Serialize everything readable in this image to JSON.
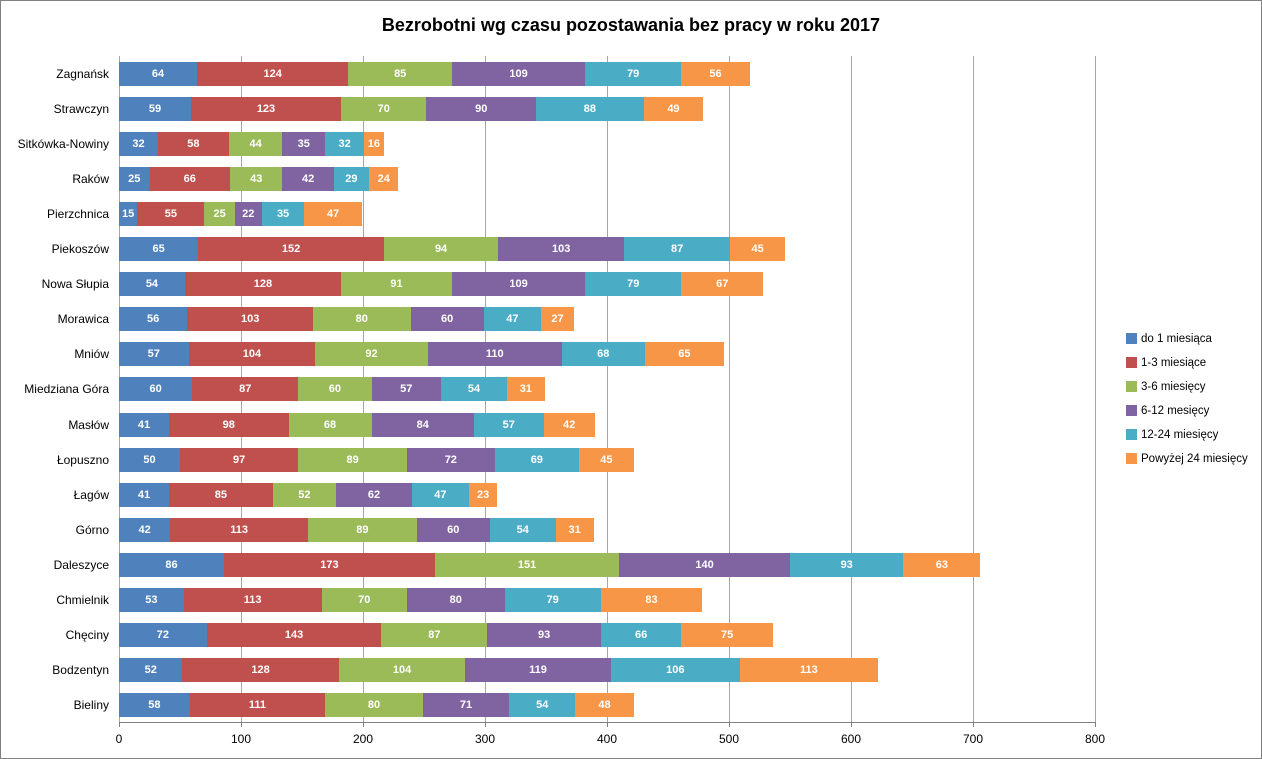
{
  "page": {
    "background": "#ffffff",
    "frame_border_color": "#808080",
    "gridline_color": "#a6a6a6",
    "axis_color": "#808080",
    "data_label_color": "#ffffff"
  },
  "chart_data": {
    "type": "bar",
    "orientation": "horizontal",
    "stacked": true,
    "title": "Bezrobotni wg czasu pozostawania bez pracy w roku 2017",
    "xlabel": "",
    "ylabel": "",
    "xlim": [
      0,
      800
    ],
    "x_ticks": [
      0,
      100,
      200,
      300,
      400,
      500,
      600,
      700,
      800
    ],
    "grid": true,
    "data_labels": true,
    "legend_position": "right",
    "categories": [
      "Zagnańsk",
      "Strawczyn",
      "Sitkówka-Nowiny",
      "Raków",
      "Pierzchnica",
      "Piekoszów",
      "Nowa Słupia",
      "Morawica",
      "Mniów",
      "Miedziana Góra",
      "Masłów",
      "Łopuszno",
      "Łagów",
      "Górno",
      "Daleszyce",
      "Chmielnik",
      "Chęciny",
      "Bodzentyn",
      "Bieliny"
    ],
    "series": [
      {
        "name": "do 1 miesiąca",
        "color": "#4F81BD",
        "values": [
          64,
          59,
          32,
          25,
          15,
          65,
          54,
          56,
          57,
          60,
          41,
          50,
          41,
          42,
          86,
          53,
          72,
          52,
          58
        ]
      },
      {
        "name": "1-3 miesiące",
        "color": "#C0504D",
        "values": [
          124,
          123,
          58,
          66,
          55,
          152,
          128,
          103,
          104,
          87,
          98,
          97,
          85,
          113,
          173,
          113,
          143,
          128,
          111
        ]
      },
      {
        "name": "3-6 miesięcy",
        "color": "#9BBB59",
        "values": [
          85,
          70,
          44,
          43,
          25,
          94,
          91,
          80,
          92,
          60,
          68,
          89,
          52,
          89,
          151,
          70,
          87,
          104,
          80
        ]
      },
      {
        "name": "6-12 mesięcy",
        "color": "#8064A2",
        "values": [
          109,
          90,
          35,
          42,
          22,
          103,
          109,
          60,
          110,
          57,
          84,
          72,
          62,
          60,
          140,
          80,
          93,
          119,
          71
        ]
      },
      {
        "name": "12-24 miesięcy",
        "color": "#4BACC6",
        "values": [
          79,
          88,
          32,
          29,
          35,
          87,
          79,
          47,
          68,
          54,
          57,
          69,
          47,
          54,
          93,
          79,
          66,
          106,
          54
        ]
      },
      {
        "name": "Powyżej 24 miesięcy",
        "color": "#F79646",
        "values": [
          56,
          49,
          16,
          24,
          47,
          45,
          67,
          27,
          65,
          31,
          42,
          45,
          23,
          31,
          63,
          83,
          75,
          113,
          48
        ]
      }
    ]
  }
}
